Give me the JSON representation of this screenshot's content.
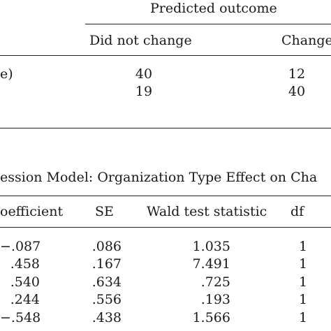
{
  "table1": {
    "spanner": "Predicted outcome",
    "col_headers": [
      "Did not change",
      "Change"
    ],
    "rows": [
      {
        "label": "e)",
        "values": [
          "40",
          "12"
        ]
      },
      {
        "label": "",
        "values": [
          "19",
          "40"
        ]
      }
    ]
  },
  "table2": {
    "caption": "ession Model: Organization Type Effect on Cha",
    "headers": [
      "oefficient",
      "SE",
      "Wald test statistic",
      "df"
    ],
    "rows": [
      {
        "coef": "−.087",
        "se": ".086",
        "wald": "1.035",
        "df": "1"
      },
      {
        "coef": ".458",
        "se": ".167",
        "wald": "7.491",
        "df": "1"
      },
      {
        "coef": ".540",
        "se": ".634",
        "wald": ".725",
        "df": "1"
      },
      {
        "coef": ".244",
        "se": ".556",
        "wald": ".193",
        "df": "1"
      },
      {
        "coef": "−.548",
        "se": ".438",
        "wald": "1.566",
        "df": "1"
      }
    ]
  }
}
